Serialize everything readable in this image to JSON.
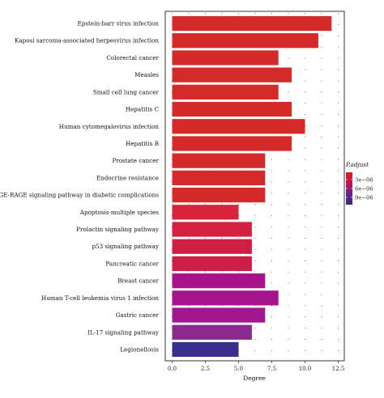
{
  "chart_data": {
    "type": "bar",
    "orientation": "horizontal",
    "xlabel": "Degree",
    "ylabel": "",
    "xlim": [
      0,
      12.5
    ],
    "xticks": [
      "0.0",
      "2.5",
      "5.0",
      "7.5",
      "10.0",
      "12.5"
    ],
    "grid": "dotted",
    "categories": [
      "Epstein-barr virus infection",
      "Kaposi sarcoma-associated herpesvirus infection",
      "Colorectal cancer",
      "Measles",
      "Small cell lung cancer",
      "Hepatitis C",
      "Human cytomegalovirus infection",
      "Hepatitis B",
      "Prostate cancer",
      "Endocrine resistance",
      "AGE-RAGE signaling pathway in diabetic complications",
      "Apoptosis-multiple species",
      "Prolactin signaling pathway",
      "p53 signaling pathway",
      "Pancreatic cancer",
      "Breast cancer",
      "Human T-cell leukemia virus 1 infection",
      "Gastric cancer",
      "IL-17 signaling pathway",
      "Legionellosis"
    ],
    "values": [
      12,
      11,
      8,
      9,
      8,
      9,
      10,
      9,
      7,
      7,
      7,
      5,
      6,
      6,
      6,
      7,
      8,
      7,
      6,
      5
    ],
    "bar_colors": [
      "#d42a2a",
      "#d42a2a",
      "#d42a2a",
      "#d42a2a",
      "#d42a2a",
      "#d42a2a",
      "#d42a2a",
      "#d42a2a",
      "#d42a2a",
      "#d42a2a",
      "#d42a2a",
      "#d8243a",
      "#d4213f",
      "#d01f44",
      "#cc1f48",
      "#a8128a",
      "#a6148d",
      "#a2168f",
      "#8a2a8f",
      "#3a2e8c"
    ],
    "legend": {
      "title": "P.adjust",
      "position": "right",
      "ticks": [
        "3e−06",
        "6e−06",
        "9e−06"
      ],
      "colors": [
        "#e41a1c",
        "#c4105a",
        "#6d1f8a",
        "#2b2f87"
      ]
    }
  }
}
